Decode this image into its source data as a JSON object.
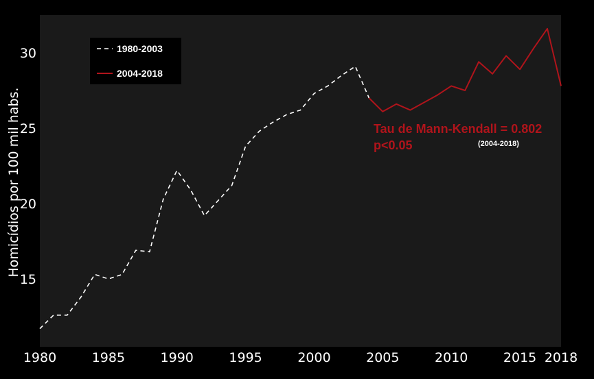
{
  "chart_data": {
    "type": "line",
    "ylabel": "Homicídios por 100 mil habs.",
    "xlabel": "",
    "xlim": [
      1980,
      2018
    ],
    "ylim": [
      10.5,
      32.5
    ],
    "x_ticks": [
      "1980",
      "1985",
      "1990",
      "1995",
      "2000",
      "2005",
      "2010",
      "2015",
      "2018"
    ],
    "y_ticks": [
      "15",
      "20",
      "25",
      "30"
    ],
    "grid": false,
    "legend_position": "top-left",
    "colors": {
      "page_background": "#000000",
      "plot_background": "#1a1a1a",
      "series_1980_2003": "#ffffff",
      "series_2004_2018": "#b0141b",
      "annotation": "#b0141b"
    },
    "series": [
      {
        "name": "1980-2003",
        "style": "dashed",
        "x": [
          1980,
          1981,
          1982,
          1983,
          1984,
          1985,
          1986,
          1987,
          1988,
          1989,
          1990,
          1991,
          1992,
          1993,
          1994,
          1995,
          1996,
          1997,
          1998,
          1999,
          2000,
          2001,
          2002,
          2003,
          2004
        ],
        "values": [
          11.7,
          12.6,
          12.6,
          13.8,
          15.3,
          15.0,
          15.3,
          16.9,
          16.8,
          20.3,
          22.2,
          20.9,
          19.2,
          20.2,
          21.2,
          23.8,
          24.8,
          25.4,
          25.9,
          26.2,
          27.3,
          27.8,
          28.5,
          29.1,
          27.0
        ]
      },
      {
        "name": "2004-2018",
        "style": "solid",
        "x": [
          2004,
          2005,
          2006,
          2007,
          2008,
          2009,
          2010,
          2011,
          2012,
          2013,
          2014,
          2015,
          2016,
          2017,
          2018
        ],
        "values": [
          27.0,
          26.1,
          26.6,
          26.2,
          26.7,
          27.2,
          27.8,
          27.5,
          29.4,
          28.6,
          29.8,
          28.9,
          30.3,
          31.6,
          27.8
        ]
      }
    ],
    "annotations": {
      "tau": "Tau de Mann-Kendall = 0.802",
      "p_value": "p<0.05",
      "period": "(2004-2018)"
    }
  }
}
